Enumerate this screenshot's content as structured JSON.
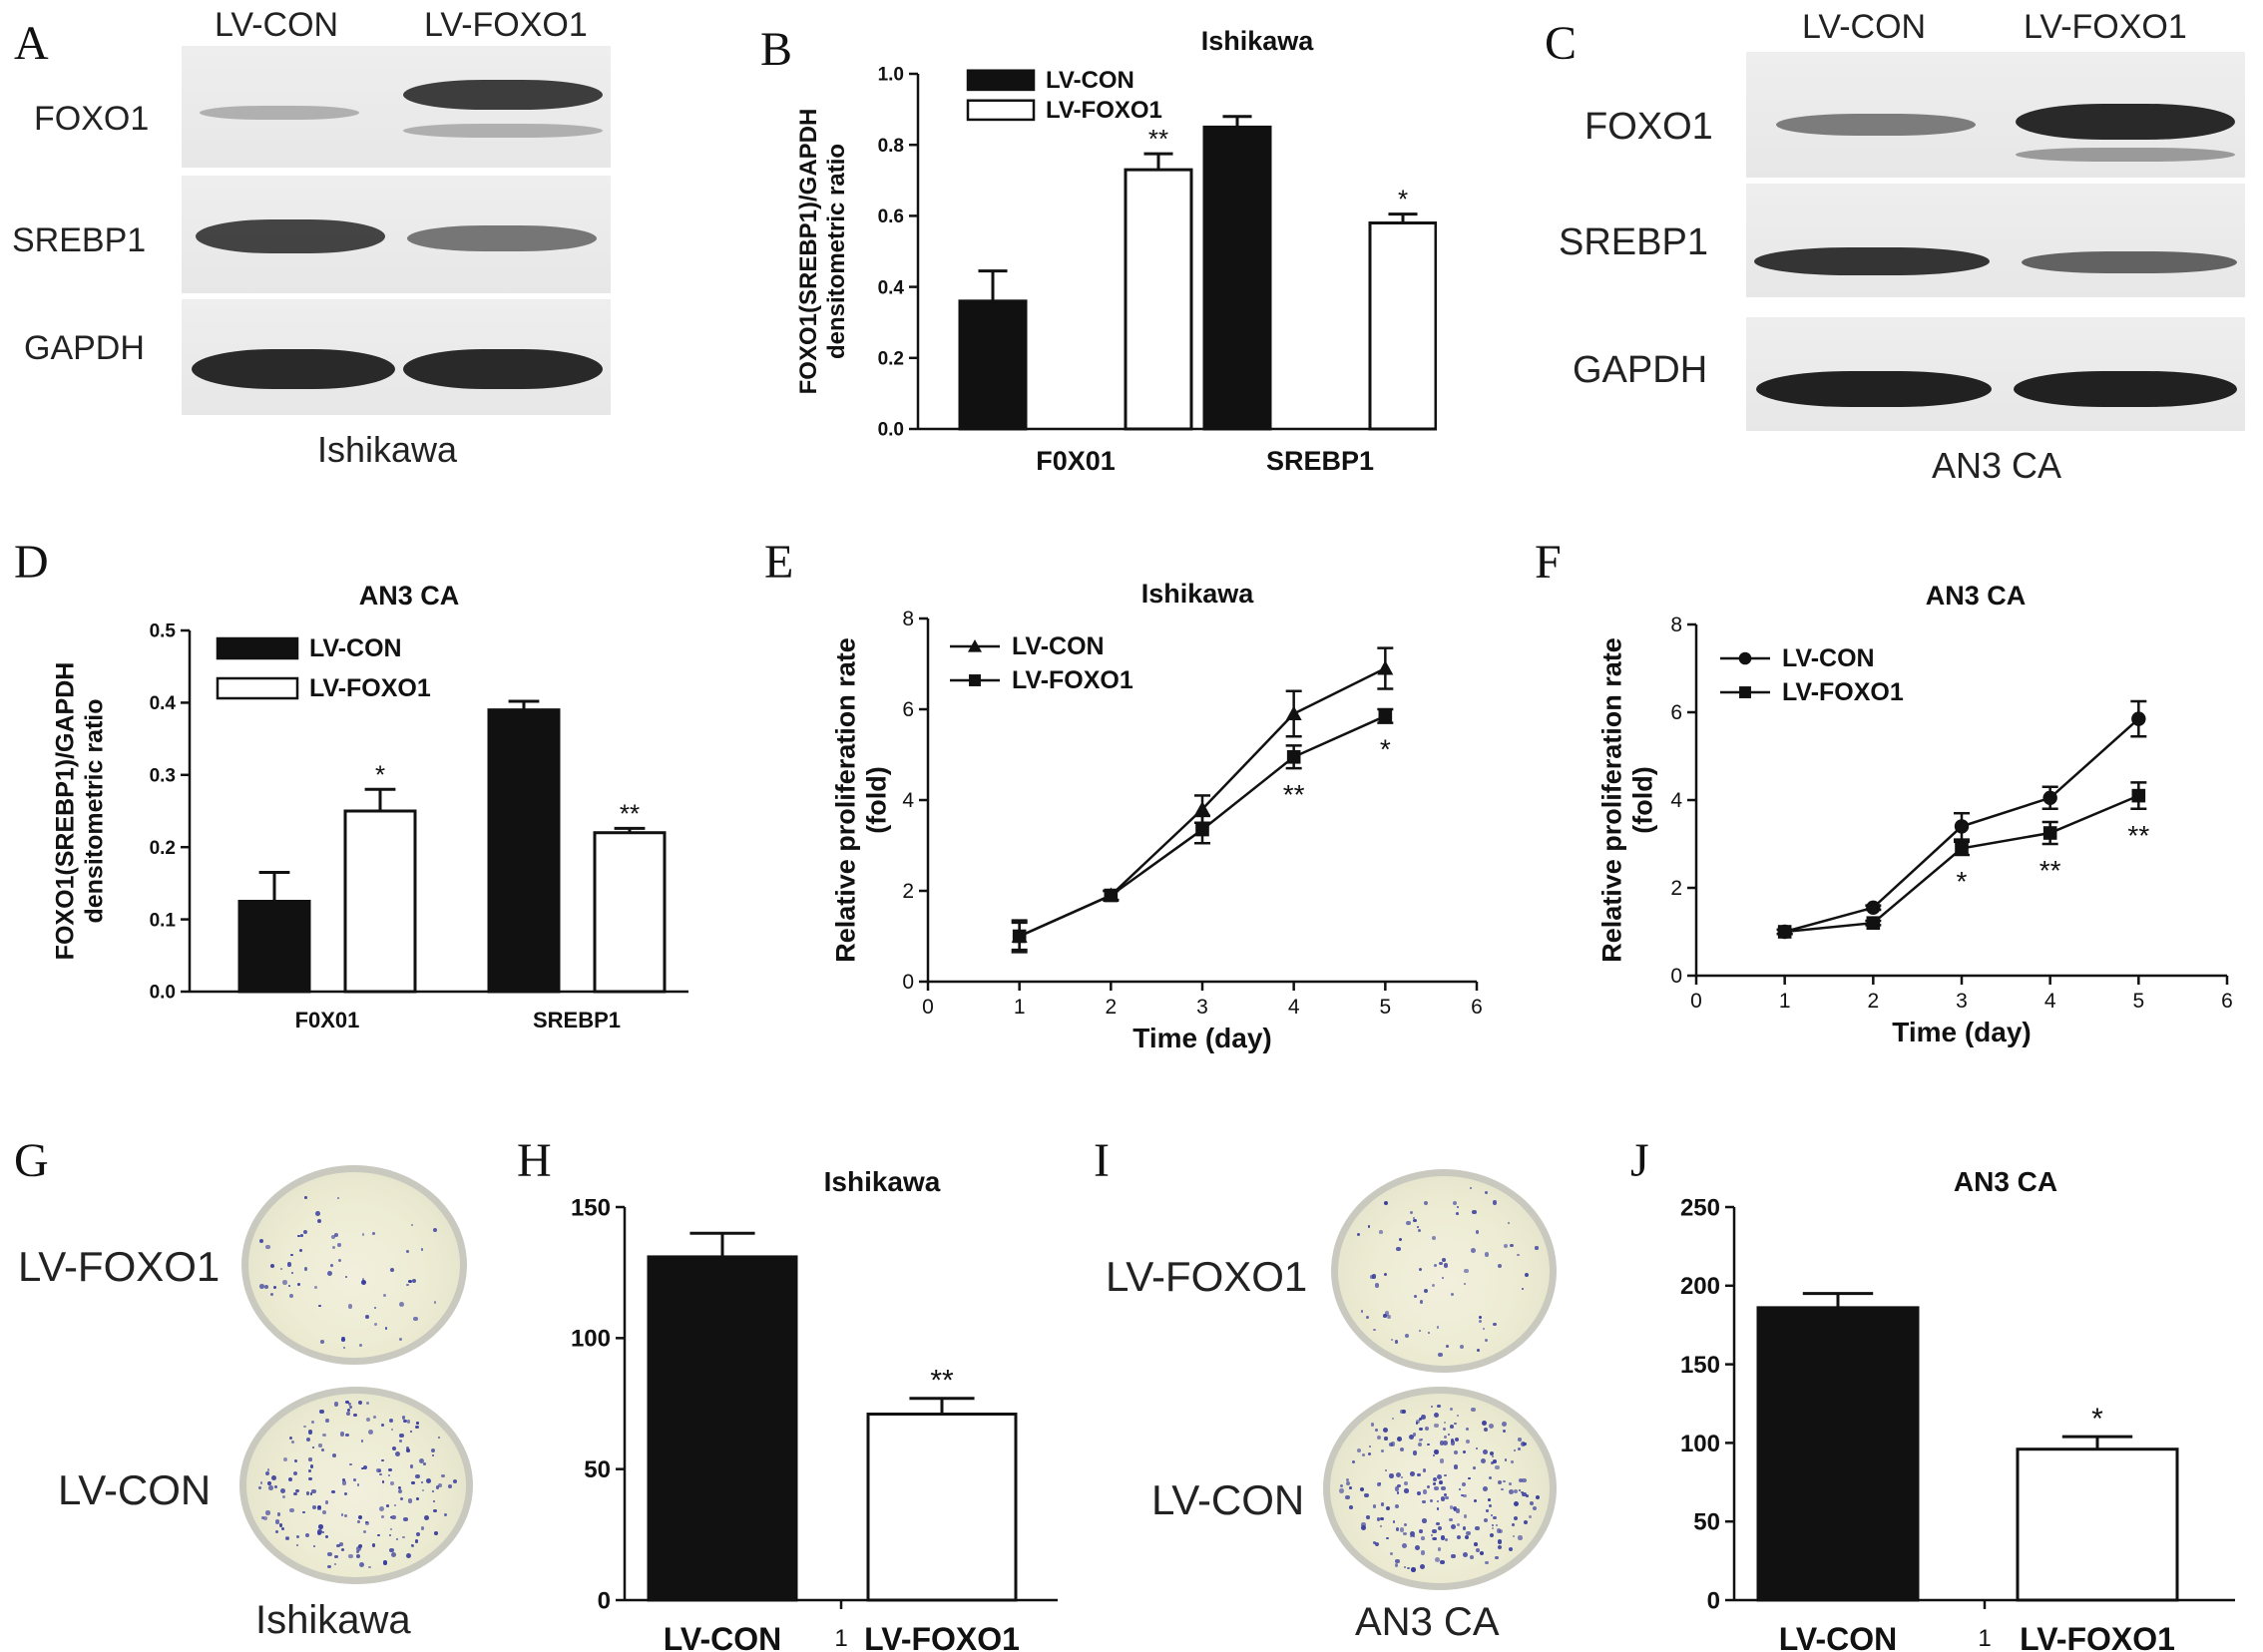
{
  "panels": {
    "A": {
      "label": "A",
      "columns": [
        "LV-CON",
        "LV-FOXO1"
      ],
      "rows": [
        "FOXO1",
        "SREBP1",
        "GAPDH"
      ],
      "caption": "Ishikawa"
    },
    "C": {
      "label": "C",
      "columns": [
        "LV-CON",
        "LV-FOXO1"
      ],
      "rows": [
        "FOXO1",
        "SREBP1",
        "GAPDH"
      ],
      "caption": "AN3 CA"
    },
    "G": {
      "label": "G",
      "rows": [
        "LV-FOXO1",
        "LV-CON"
      ],
      "caption": "Ishikawa"
    },
    "I": {
      "label": "I",
      "rows": [
        "LV-FOXO1",
        "LV-CON"
      ],
      "caption": "AN3 CA"
    }
  },
  "colors": {
    "filled_bar": "#111111",
    "open_bar": "#ffffff",
    "axis": "#111111",
    "colony": "#3a3f9e"
  },
  "chart_data": [
    {
      "panel": "B",
      "type": "bar",
      "title": "Ishikawa",
      "ylabel": [
        "FOXO1(SREBP1)/GAPDH",
        "densitometric ratio"
      ],
      "xlabel": "",
      "categories": [
        "F0X01",
        "SREBP1"
      ],
      "ylim": [
        0,
        1.0
      ],
      "yticks": [
        "0.0",
        "0.2",
        "0.4",
        "0.6",
        "0.8",
        "1.0"
      ],
      "legend_position": "top-left",
      "series": [
        {
          "name": "LV-CON",
          "fill": "#111111",
          "values": [
            0.36,
            0.85
          ],
          "errors": [
            0.085,
            0.03
          ],
          "sig": [
            "",
            ""
          ]
        },
        {
          "name": "LV-FOXO1",
          "fill": "#ffffff",
          "values": [
            0.73,
            0.58
          ],
          "errors": [
            0.045,
            0.025
          ],
          "sig": [
            "**",
            "*"
          ]
        }
      ]
    },
    {
      "panel": "D",
      "type": "bar",
      "title": "AN3 CA",
      "ylabel": [
        "FOXO1(SREBP1)/GAPDH",
        "densitometric ratio"
      ],
      "xlabel": "",
      "categories": [
        "F0X01",
        "SREBP1"
      ],
      "ylim": [
        0,
        0.5
      ],
      "yticks": [
        "0.0",
        "0.1",
        "0.2",
        "0.3",
        "0.4",
        "0.5"
      ],
      "legend_position": "top-left",
      "series": [
        {
          "name": "LV-CON",
          "fill": "#111111",
          "values": [
            0.125,
            0.39
          ],
          "errors": [
            0.04,
            0.012
          ],
          "sig": [
            "",
            ""
          ]
        },
        {
          "name": "LV-FOXO1",
          "fill": "#ffffff",
          "values": [
            0.25,
            0.22
          ],
          "errors": [
            0.03,
            0.006
          ],
          "sig": [
            "*",
            "**"
          ]
        }
      ]
    },
    {
      "panel": "E",
      "type": "line",
      "title": "Ishikawa",
      "ylabel": [
        "Relative proliferation rate",
        "(fold)"
      ],
      "xlabel": "Time (day)",
      "xlim": [
        0,
        6
      ],
      "ylim": [
        0,
        8
      ],
      "xticks": [
        0,
        1,
        2,
        3,
        4,
        5,
        6
      ],
      "yticks": [
        0,
        2,
        4,
        6,
        8
      ],
      "legend_position": "top-left",
      "series": [
        {
          "name": "LV-CON",
          "marker": "triangle",
          "x": [
            1,
            2,
            3,
            4,
            5
          ],
          "y": [
            1.0,
            1.9,
            3.8,
            5.9,
            6.9
          ],
          "errors": [
            0.35,
            0.1,
            0.3,
            0.5,
            0.45
          ]
        },
        {
          "name": "LV-FOXO1",
          "marker": "square",
          "x": [
            1,
            2,
            3,
            4,
            5
          ],
          "y": [
            1.0,
            1.9,
            3.35,
            4.95,
            5.85
          ],
          "errors": [
            0.3,
            0.1,
            0.3,
            0.25,
            0.15
          ]
        }
      ],
      "annotations": [
        {
          "x": 4,
          "text": "**"
        },
        {
          "x": 5,
          "text": "*"
        }
      ]
    },
    {
      "panel": "F",
      "type": "line",
      "title": "AN3 CA",
      "ylabel": [
        "Relative proliferation rate",
        "(fold)"
      ],
      "xlabel": "Time (day)",
      "xlim": [
        0,
        6
      ],
      "ylim": [
        0,
        8
      ],
      "xticks": [
        0,
        1,
        2,
        3,
        4,
        5,
        6
      ],
      "yticks": [
        0,
        2,
        4,
        6,
        8
      ],
      "legend_position": "top-left",
      "series": [
        {
          "name": "LV-CON",
          "marker": "circle",
          "x": [
            1,
            2,
            3,
            4,
            5
          ],
          "y": [
            1.0,
            1.55,
            3.4,
            4.05,
            5.85
          ],
          "errors": [
            0.05,
            0.05,
            0.3,
            0.25,
            0.4
          ]
        },
        {
          "name": "LV-FOXO1",
          "marker": "square",
          "x": [
            1,
            2,
            3,
            4,
            5
          ],
          "y": [
            1.0,
            1.2,
            2.9,
            3.25,
            4.1
          ],
          "errors": [
            0.05,
            0.05,
            0.15,
            0.25,
            0.3
          ]
        }
      ],
      "annotations": [
        {
          "x": 3,
          "text": "*"
        },
        {
          "x": 4,
          "text": "**"
        },
        {
          "x": 5,
          "text": "**"
        }
      ]
    },
    {
      "panel": "H",
      "type": "bar",
      "title": "Ishikawa",
      "categories": [
        "LV-CON",
        "LV-FOXO1"
      ],
      "center_tick": "1",
      "ylim": [
        0,
        150
      ],
      "yticks": [
        0,
        50,
        100,
        150
      ],
      "bars": [
        {
          "name": "LV-CON",
          "fill": "#111111",
          "value": 131,
          "error": 9,
          "sig": ""
        },
        {
          "name": "LV-FOXO1",
          "fill": "#ffffff",
          "value": 71,
          "error": 6,
          "sig": "**"
        }
      ]
    },
    {
      "panel": "J",
      "type": "bar",
      "title": "AN3 CA",
      "categories": [
        "LV-CON",
        "LV-FOXO1"
      ],
      "center_tick": "1",
      "ylim": [
        0,
        250
      ],
      "yticks": [
        0,
        50,
        100,
        150,
        200,
        250
      ],
      "bars": [
        {
          "name": "LV-CON",
          "fill": "#111111",
          "value": 186,
          "error": 9,
          "sig": ""
        },
        {
          "name": "LV-FOXO1",
          "fill": "#ffffff",
          "value": 96,
          "error": 8,
          "sig": "*"
        }
      ]
    }
  ]
}
